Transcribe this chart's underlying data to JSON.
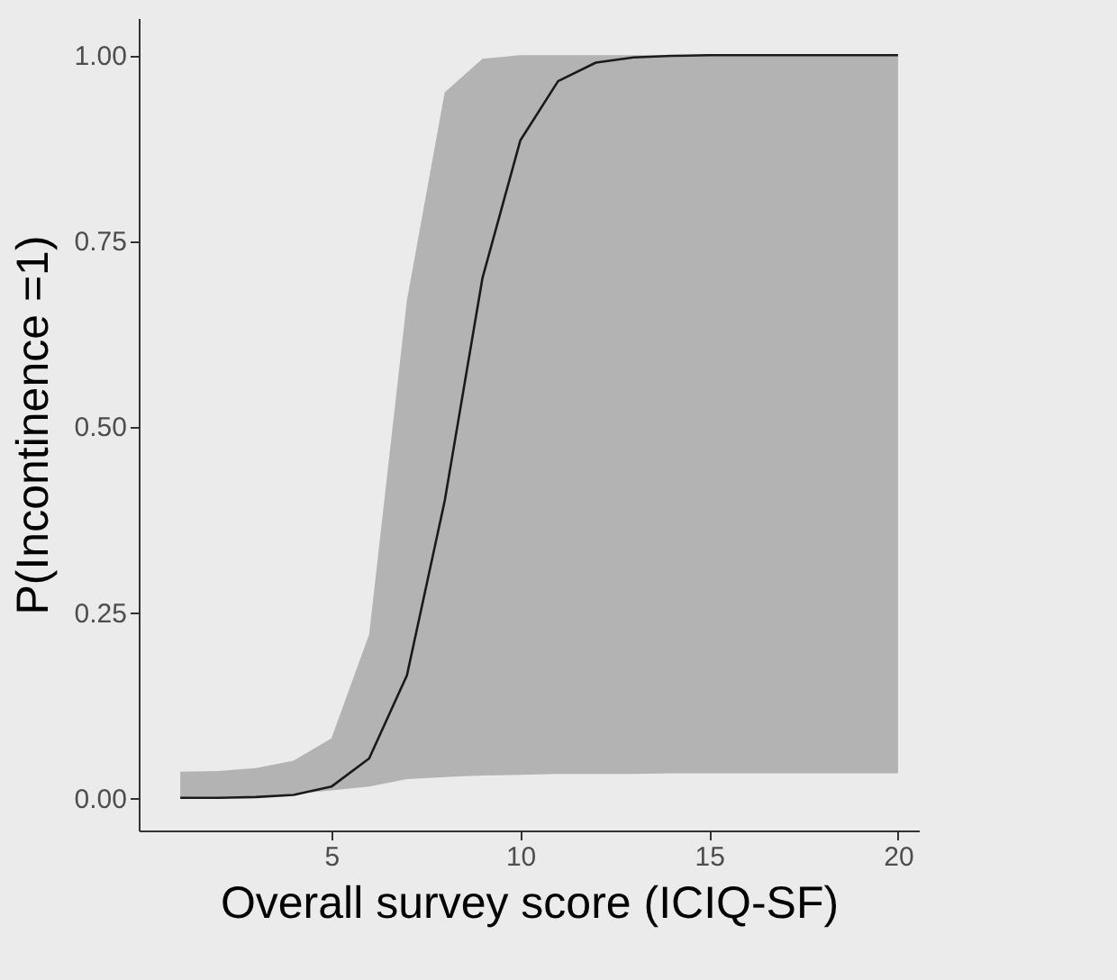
{
  "chart_data": {
    "type": "line",
    "xlabel": "Overall survey score (ICIQ-SF)",
    "ylabel": "P(Incontinence =1)",
    "x": [
      1,
      2,
      3,
      4,
      5,
      6,
      7,
      8,
      9,
      10,
      11,
      12,
      13,
      14,
      15,
      16,
      17,
      18,
      19,
      20
    ],
    "series": [
      {
        "color": "#1a1a1a",
        "values": [
          0.0,
          0.0,
          0.001,
          0.004,
          0.015,
          0.053,
          0.165,
          0.4,
          0.7,
          0.885,
          0.965,
          0.99,
          0.997,
          0.999,
          1.0,
          1.0,
          1.0,
          1.0,
          1.0,
          1.0
        ],
        "lower": [
          0.0,
          0.0,
          0.002,
          0.005,
          0.01,
          0.015,
          0.025,
          0.028,
          0.03,
          0.031,
          0.032,
          0.032,
          0.032,
          0.033,
          0.033,
          0.033,
          0.033,
          0.033,
          0.033,
          0.033
        ],
        "upper": [
          0.035,
          0.036,
          0.04,
          0.05,
          0.08,
          0.22,
          0.67,
          0.95,
          0.995,
          1.0,
          1.0,
          1.0,
          1.0,
          1.0,
          1.0,
          1.0,
          1.0,
          1.0,
          1.0,
          1.0
        ]
      }
    ],
    "xlim": [
      -0.1,
      20.55
    ],
    "ylim": [
      -0.044,
      1.05
    ],
    "xticks": [
      5,
      10,
      15,
      20
    ],
    "yticks": [
      {
        "value": 0,
        "label": "0.00"
      },
      {
        "value": 0.25,
        "label": "0.25"
      },
      {
        "value": 0.5,
        "label": "0.50"
      },
      {
        "value": 0.75,
        "label": "0.75"
      },
      {
        "value": 1,
        "label": "1.00"
      }
    ],
    "grid": false,
    "marker": "none",
    "line_style": "solid"
  }
}
